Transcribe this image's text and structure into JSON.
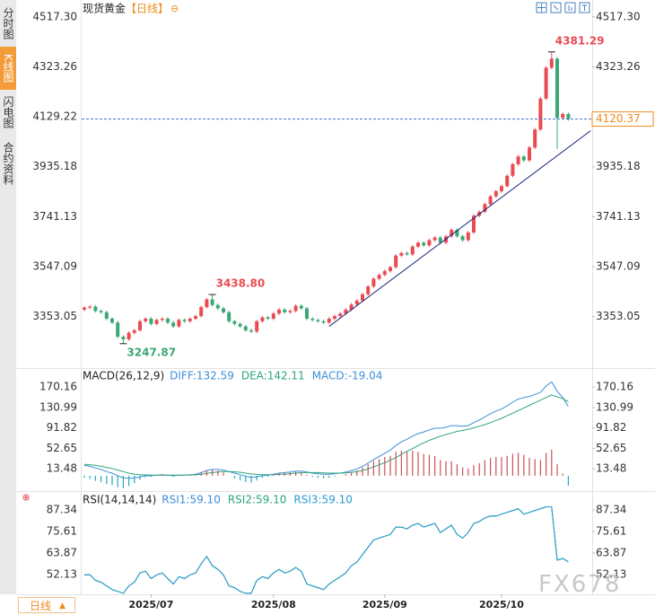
{
  "ui": {
    "tabs": [
      "分时图",
      "K线图",
      "闪电图",
      "合约资料"
    ],
    "period_button": "日线",
    "watermark": "FX678"
  },
  "chart_data": [
    {
      "type": "candlestick",
      "title": "现货黄金",
      "subtitle": "【日线】",
      "categories": [
        null,
        null,
        null,
        null,
        null,
        null,
        null,
        null,
        null,
        null,
        null,
        null,
        "2025/07",
        null,
        null,
        null,
        null,
        null,
        null,
        null,
        null,
        null,
        null,
        null,
        null,
        null,
        null,
        null,
        null,
        null,
        null,
        null,
        null,
        null,
        "2025/08",
        null,
        null,
        null,
        null,
        null,
        null,
        null,
        null,
        null,
        null,
        null,
        null,
        null,
        null,
        null,
        null,
        null,
        null,
        null,
        "2025/09",
        null,
        null,
        null,
        null,
        null,
        null,
        null,
        null,
        null,
        null,
        null,
        null,
        null,
        null,
        null,
        null,
        null,
        null,
        null,
        null,
        "2025/10",
        null,
        null,
        null,
        null,
        null,
        null,
        null,
        null,
        null,
        null,
        null,
        null
      ],
      "open": [
        3380,
        3388,
        3392,
        3375,
        3370,
        3345,
        3330,
        3275,
        3265,
        3290,
        3300,
        3335,
        3345,
        3325,
        3340,
        3345,
        3330,
        3315,
        3340,
        3335,
        3345,
        3355,
        3390,
        3420,
        3398,
        3385,
        3370,
        3335,
        3325,
        3315,
        3300,
        3295,
        3335,
        3350,
        3345,
        3365,
        3380,
        3370,
        3375,
        3395,
        3385,
        3345,
        3340,
        3335,
        3330,
        3345,
        3355,
        3365,
        3380,
        3400,
        3415,
        3440,
        3470,
        3500,
        3515,
        3530,
        3545,
        3590,
        3600,
        3595,
        3625,
        3640,
        3630,
        3650,
        3660,
        3640,
        3665,
        3690,
        3665,
        3650,
        3680,
        3745,
        3760,
        3790,
        3820,
        3840,
        3860,
        3900,
        3945,
        3975,
        3960,
        4010,
        4080,
        4200,
        4320,
        4355,
        4125,
        4140
      ],
      "high": [
        3394,
        3398,
        3398,
        3381,
        3376,
        3351,
        3336,
        3281,
        3296,
        3306,
        3341,
        3351,
        3351,
        3346,
        3351,
        3351,
        3336,
        3346,
        3346,
        3351,
        3361,
        3396,
        3426,
        3438.8,
        3404,
        3391,
        3376,
        3341,
        3331,
        3321,
        3306,
        3341,
        3356,
        3356,
        3371,
        3386,
        3386,
        3381,
        3401,
        3401,
        3391,
        3351,
        3346,
        3341,
        3351,
        3361,
        3371,
        3386,
        3406,
        3421,
        3446,
        3476,
        3506,
        3521,
        3536,
        3551,
        3596,
        3606,
        3606,
        3631,
        3646,
        3646,
        3656,
        3666,
        3666,
        3671,
        3696,
        3696,
        3671,
        3686,
        3751,
        3766,
        3796,
        3826,
        3846,
        3866,
        3906,
        3951,
        3981,
        3981,
        4016,
        4086,
        4206,
        4326,
        4381.29,
        4361,
        4146,
        4146
      ],
      "low": [
        3374,
        3382,
        3369,
        3364,
        3339,
        3324,
        3269,
        3247.87,
        3259,
        3284,
        3294,
        3329,
        3319,
        3319,
        3334,
        3324,
        3309,
        3309,
        3329,
        3329,
        3339,
        3349,
        3384,
        3392,
        3379,
        3364,
        3329,
        3319,
        3309,
        3294,
        3289,
        3289,
        3329,
        3339,
        3339,
        3359,
        3364,
        3364,
        3369,
        3379,
        3339,
        3334,
        3329,
        3324,
        3324,
        3339,
        3349,
        3359,
        3374,
        3394,
        3409,
        3434,
        3464,
        3494,
        3509,
        3524,
        3539,
        3584,
        3589,
        3589,
        3619,
        3624,
        3624,
        3644,
        3634,
        3634,
        3659,
        3659,
        3644,
        3644,
        3674,
        3739,
        3754,
        3784,
        3814,
        3834,
        3854,
        3894,
        3939,
        3954,
        3954,
        4004,
        4074,
        4194,
        4314,
        4005,
        4119,
        4114
      ],
      "close": [
        3388,
        3392,
        3375,
        3370,
        3345,
        3330,
        3275,
        3265,
        3290,
        3300,
        3335,
        3345,
        3325,
        3340,
        3345,
        3330,
        3315,
        3340,
        3335,
        3345,
        3355,
        3390,
        3420,
        3398,
        3385,
        3370,
        3335,
        3325,
        3315,
        3300,
        3295,
        3335,
        3350,
        3345,
        3365,
        3380,
        3370,
        3375,
        3395,
        3385,
        3345,
        3340,
        3335,
        3330,
        3345,
        3355,
        3365,
        3380,
        3400,
        3415,
        3440,
        3470,
        3500,
        3515,
        3530,
        3545,
        3590,
        3600,
        3595,
        3625,
        3640,
        3630,
        3650,
        3660,
        3640,
        3665,
        3690,
        3665,
        3650,
        3680,
        3745,
        3760,
        3790,
        3820,
        3840,
        3860,
        3900,
        3945,
        3975,
        3960,
        4010,
        4080,
        4200,
        4320,
        4355,
        4125,
        4140,
        4120.37
      ],
      "up_color": "#e94b52",
      "down_color": "#3aa776",
      "ylim": [
        3160,
        4555
      ],
      "yticks": [
        {
          "value": 4517.3,
          "label": "4517.30"
        },
        4323.26,
        4129.22,
        3935.18,
        3741.13,
        3547.09,
        3353.05
      ],
      "annotations": [
        {
          "value": 4381.29,
          "color": "#e94b52"
        },
        {
          "value": 3438.8,
          "label": "3438.80",
          "color": "#e94b52"
        },
        {
          "value": 3247.87,
          "color": "#3aa776"
        }
      ],
      "last_price": 4120.37,
      "last_price_color": "#f08a1c",
      "trendline": {
        "x": [
          44,
          91
        ],
        "y": [
          3315,
          4075
        ],
        "color": "#1a237e"
      }
    },
    {
      "type": "macd",
      "title": "MACD(26,12,9)",
      "series": [
        {
          "name": "DIFF:132.59",
          "color": "#3d8fd8",
          "values": [
            20,
            18,
            15,
            12,
            8,
            5,
            0,
            -4,
            -5,
            -4,
            -2,
            0,
            0,
            1,
            2,
            1,
            0,
            1,
            1,
            2,
            3,
            6,
            10,
            12,
            12,
            11,
            8,
            5,
            2,
            -1,
            -3,
            -2,
            0,
            1,
            3,
            5,
            6,
            7,
            9,
            9,
            7,
            5,
            4,
            3,
            3,
            4,
            5,
            7,
            10,
            13,
            18,
            24,
            31,
            37,
            43,
            49,
            58,
            65,
            70,
            76,
            81,
            84,
            88,
            91,
            91,
            93,
            96,
            96,
            95,
            96,
            102,
            107,
            113,
            119,
            124,
            128,
            134,
            141,
            147,
            150,
            152,
            156,
            160,
            172,
            180,
            162,
            150,
            132.59
          ]
        },
        {
          "name": "DEA:142.11",
          "color": "#2aa57a",
          "values": [
            22,
            21,
            20,
            18,
            16,
            14,
            11,
            8,
            5,
            3,
            2,
            1.5,
            1,
            1,
            1,
            1,
            1,
            1,
            1,
            1.5,
            2,
            3,
            4.5,
            6,
            7,
            8,
            8,
            7.5,
            6.5,
            5,
            3.5,
            2.5,
            2,
            2,
            2,
            2.5,
            3,
            4,
            5,
            6,
            6,
            6,
            6,
            5.5,
            5,
            5,
            5,
            5.5,
            6.5,
            8,
            10,
            13,
            17,
            21,
            25,
            30,
            35,
            41,
            47,
            52,
            58,
            63,
            68,
            72,
            76,
            79,
            82,
            85,
            87,
            89,
            92,
            95,
            98,
            102,
            106,
            110,
            115,
            120,
            125,
            130,
            135,
            140,
            145,
            150,
            155,
            151,
            148,
            142.11
          ]
        },
        {
          "name": "MACD:-19.04",
          "type": "bar",
          "color": "#3d8fd8",
          "up_color": "#c9515a",
          "down_color": "#2aa8c0",
          "values": [
            -4,
            -6,
            -10,
            -12,
            -16,
            -18,
            -22,
            -24,
            -20,
            -14,
            -8,
            -3,
            -2,
            0,
            2,
            0,
            -2,
            0,
            0,
            1,
            2,
            6,
            11,
            12,
            10,
            6,
            0,
            -5,
            -9,
            -12,
            -13,
            -9,
            -4,
            -2,
            2,
            5,
            6,
            6,
            8,
            6,
            2,
            -2,
            -4,
            -5,
            -4,
            -2,
            0,
            3,
            7,
            10,
            16,
            22,
            28,
            32,
            36,
            38,
            46,
            48,
            46,
            48,
            46,
            42,
            40,
            38,
            30,
            28,
            28,
            22,
            16,
            14,
            20,
            24,
            30,
            34,
            36,
            36,
            38,
            42,
            44,
            40,
            34,
            32,
            30,
            44,
            50,
            22,
            4,
            -19.04
          ]
        }
      ],
      "ylim": [
        -26,
        203
      ],
      "yticks": [
        170.16,
        130.99,
        91.82,
        52.65,
        13.48
      ]
    },
    {
      "type": "line",
      "title": "RSI(14,14,14)",
      "series": [
        {
          "name": "RSI1:59.10",
          "color": "#3d8fd8",
          "values": [
            52,
            52,
            49,
            48,
            46,
            44,
            43,
            42,
            46,
            48,
            53,
            54,
            50,
            52,
            53,
            50,
            47,
            51,
            50,
            52,
            53,
            58,
            62,
            57,
            55,
            52,
            46,
            45,
            43,
            42,
            42,
            49,
            51,
            50,
            53,
            55,
            53,
            54,
            56,
            54,
            47,
            46,
            45,
            44,
            47,
            49,
            51,
            53,
            57,
            59,
            63,
            67,
            71,
            72,
            73,
            74,
            78,
            78,
            77,
            79,
            80,
            78,
            79,
            80,
            75,
            77,
            79,
            74,
            72,
            75,
            80,
            81,
            83,
            84,
            84,
            85,
            86,
            87,
            88,
            85,
            86,
            87,
            88,
            89,
            89,
            60,
            61,
            59.1
          ]
        },
        {
          "name": "RSI2:59.10",
          "color": "#2aa57a",
          "values": [
            52,
            52,
            49,
            48,
            46,
            44,
            43,
            42,
            46,
            48,
            53,
            54,
            50,
            52,
            53,
            50,
            47,
            51,
            50,
            52,
            53,
            58,
            62,
            57,
            55,
            52,
            46,
            45,
            43,
            42,
            42,
            49,
            51,
            50,
            53,
            55,
            53,
            54,
            56,
            54,
            47,
            46,
            45,
            44,
            47,
            49,
            51,
            53,
            57,
            59,
            63,
            67,
            71,
            72,
            73,
            74,
            78,
            78,
            77,
            79,
            80,
            78,
            79,
            80,
            75,
            77,
            79,
            74,
            72,
            75,
            80,
            81,
            83,
            84,
            84,
            85,
            86,
            87,
            88,
            85,
            86,
            87,
            88,
            89,
            89,
            60,
            61,
            59.1
          ]
        },
        {
          "name": "RSI3:59.10",
          "color": "#2d9bd2",
          "values": [
            52,
            52,
            49,
            48,
            46,
            44,
            43,
            42,
            46,
            48,
            53,
            54,
            50,
            52,
            53,
            50,
            47,
            51,
            50,
            52,
            53,
            58,
            62,
            57,
            55,
            52,
            46,
            45,
            43,
            42,
            42,
            49,
            51,
            50,
            53,
            55,
            53,
            54,
            56,
            54,
            47,
            46,
            45,
            44,
            47,
            49,
            51,
            53,
            57,
            59,
            63,
            67,
            71,
            72,
            73,
            74,
            78,
            78,
            77,
            79,
            80,
            78,
            79,
            80,
            75,
            77,
            79,
            74,
            72,
            75,
            80,
            81,
            83,
            84,
            84,
            85,
            86,
            87,
            88,
            85,
            86,
            87,
            88,
            89,
            89,
            60,
            61,
            59.1
          ]
        }
      ],
      "ylim": [
        41.4,
        96.1
      ],
      "yticks": [
        87.34,
        75.61,
        63.87,
        52.13
      ]
    }
  ]
}
